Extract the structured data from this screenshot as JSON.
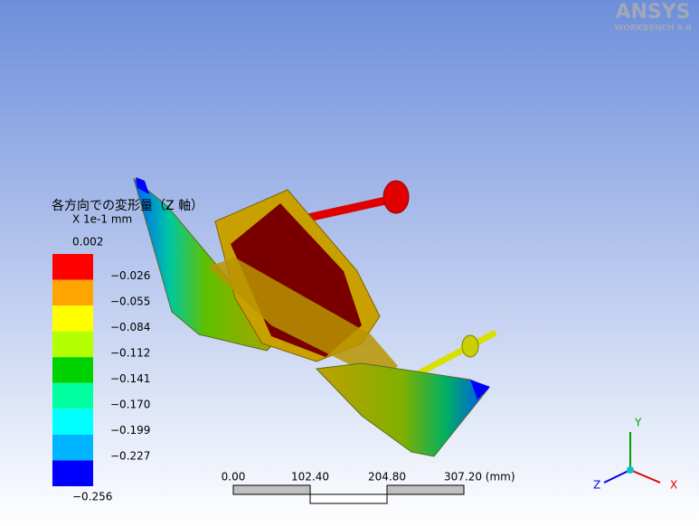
{
  "logo": {
    "brand": "ANSYS",
    "product": "WORKBENCH 9.0"
  },
  "legend": {
    "title": "各方向での変形量（Z 軸）",
    "unit": "X 1e-1 mm",
    "labels": [
      "0.002",
      "−0.026",
      "−0.055",
      "−0.084",
      "−0.112",
      "−0.141",
      "−0.170",
      "−0.199",
      "−0.227",
      "−0.256"
    ],
    "colors": [
      "#ff0000",
      "#ffa500",
      "#ffff00",
      "#b4ff00",
      "#00d200",
      "#00ffa0",
      "#00ffff",
      "#00b4ff",
      "#0000ff"
    ]
  },
  "scale_bar": {
    "labels": [
      "0.00",
      "102.40",
      "204.80",
      "307.20 (mm)"
    ]
  },
  "triad": {
    "x": "X",
    "y": "Y",
    "z": "Z"
  }
}
